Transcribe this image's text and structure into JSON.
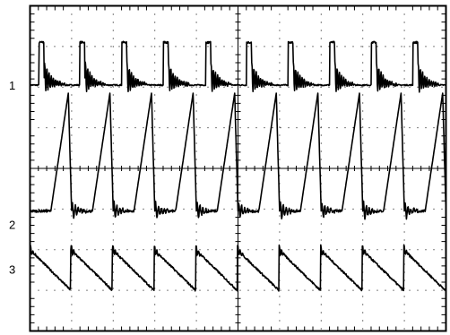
{
  "chart_data": {
    "type": "line",
    "title": "",
    "xlabel": "",
    "ylabel": "",
    "grid": true,
    "grid_divisions": {
      "x": 10,
      "y": 8
    },
    "line_color": "#000000",
    "grid_color": "#000000",
    "background": "#ffffff",
    "x_range_div": [
      0,
      10
    ],
    "y_range_div": [
      0,
      8
    ],
    "period_div": 1.0,
    "cycles": 9,
    "series": [
      {
        "label": "1",
        "label_y_div": 6.05,
        "waveform": "pulse_with_ringing",
        "baseline_div": 6.05,
        "top_div": 7.1,
        "rise_at_div": [
          0.22,
          1.2,
          2.2,
          3.2,
          4.22,
          5.2,
          6.2,
          7.2,
          8.2,
          9.2
        ],
        "high_width_div": 0.12
      },
      {
        "label": "2",
        "label_y_div": 2.62,
        "waveform": "sawtooth",
        "low_div": 2.95,
        "peak_div": 5.85,
        "ramp_start_div": [
          0.5,
          1.5,
          2.5,
          3.5,
          4.5,
          5.5,
          6.5,
          7.5,
          8.5,
          9.5
        ],
        "peak_at_div": [
          0.92,
          1.92,
          2.92,
          3.92,
          4.92,
          5.92,
          6.92,
          7.92,
          8.92,
          9.92
        ]
      },
      {
        "label": "3",
        "label_y_div": 1.52,
        "waveform": "reverse_sawtooth",
        "peak_div": 2.0,
        "trough_div": 1.0,
        "jump_at_div": [
          0.0,
          0.98,
          1.98,
          2.98,
          3.98,
          4.98,
          5.98,
          6.98,
          7.98,
          8.98
        ]
      }
    ]
  }
}
